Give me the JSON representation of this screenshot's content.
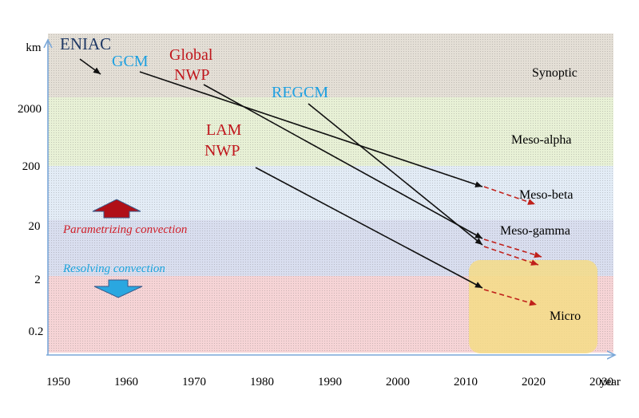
{
  "colors": {
    "synoptic_band": "#e4dfd6",
    "meso_alpha_band": "#e8f1d6",
    "meso_beta_band": "#e3ecf6",
    "meso_gamma_band": "#d9deef",
    "micro_band": "#f6d4d6",
    "micro_box": "#f4dc86",
    "axis": "#7aa7d8",
    "model_arrow": "#111111",
    "forecast_arrow": "#c0201a",
    "param_text": "#d0202a",
    "resolve_text": "#1aa3dc",
    "up_arrow": "#b01018",
    "down_arrow": "#2aa7e0",
    "label_dark": "#1f3864",
    "label_blue": "#1ea0e0",
    "label_red": "#c0161c"
  },
  "chart_data": {
    "type": "timeline-scale-diagram",
    "x_axis": {
      "unit_label": "year",
      "ticks": [
        1950,
        1960,
        1970,
        1980,
        1990,
        2000,
        2010,
        2020,
        2030
      ],
      "range": [
        1948,
        2035
      ]
    },
    "y_axis": {
      "unit_label": "km",
      "ticks": [
        "2000",
        "200",
        "20",
        "2",
        "0.2"
      ]
    },
    "scale_bands": [
      "Synoptic",
      "Meso-alpha",
      "Meso-beta",
      "Meso-gamma",
      "Micro"
    ],
    "model_labels": [
      {
        "id": "eniac",
        "lines": [
          "ENIAC"
        ]
      },
      {
        "id": "gcm",
        "lines": [
          "GCM"
        ]
      },
      {
        "id": "global_nwp",
        "lines": [
          "Global",
          "NWP"
        ]
      },
      {
        "id": "regcm",
        "lines": [
          "REGCM"
        ]
      },
      {
        "id": "lam_nwp",
        "lines": [
          "LAM",
          "NWP"
        ]
      }
    ],
    "annotations": {
      "parametrizing": "Parametrizing convection",
      "resolving": "Resolving convection"
    }
  }
}
